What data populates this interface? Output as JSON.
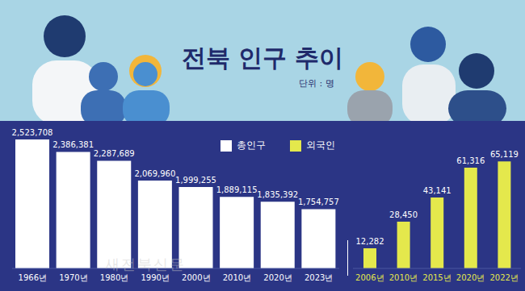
{
  "chart_data": [
    {
      "type": "bar",
      "title": "전북 인구 추이",
      "subtitle": "단위 : 명",
      "annotations": [
        "새전북신문"
      ],
      "categories": [
        "1966년",
        "1970년",
        "1980년",
        "1990년",
        "2000년",
        "2010년",
        "2020년",
        "2023년"
      ],
      "series": [
        {
          "name": "총인구",
          "color": "#ffffff",
          "values": [
            2523708,
            2386381,
            2287689,
            2069960,
            1999255,
            1889115,
            1835392,
            1754757
          ],
          "value_labels": [
            "2,523,708",
            "2,386,381",
            "2,287,689",
            "2,069,960",
            "1,999,255",
            "1,889,115",
            "1,835,392",
            "1,754,757"
          ]
        }
      ],
      "ylim": [
        1100000,
        2550000
      ],
      "tick_labels": "x",
      "data_labels": true,
      "legend": "top-right",
      "grid": false
    },
    {
      "type": "bar",
      "categories": [
        "2006년",
        "2010년",
        "2015년",
        "2020년",
        "2022년"
      ],
      "series": [
        {
          "name": "외국인",
          "color": "#e4e84c",
          "values": [
            12282,
            28450,
            43141,
            61316,
            65119
          ],
          "value_labels": [
            "12,282",
            "28,450",
            "43,141",
            "61,316",
            "65,119"
          ]
        }
      ],
      "ylim": [
        0,
        80000
      ],
      "tick_labels": "x",
      "data_labels": true,
      "legend": "top-right",
      "grid": false
    }
  ]
}
